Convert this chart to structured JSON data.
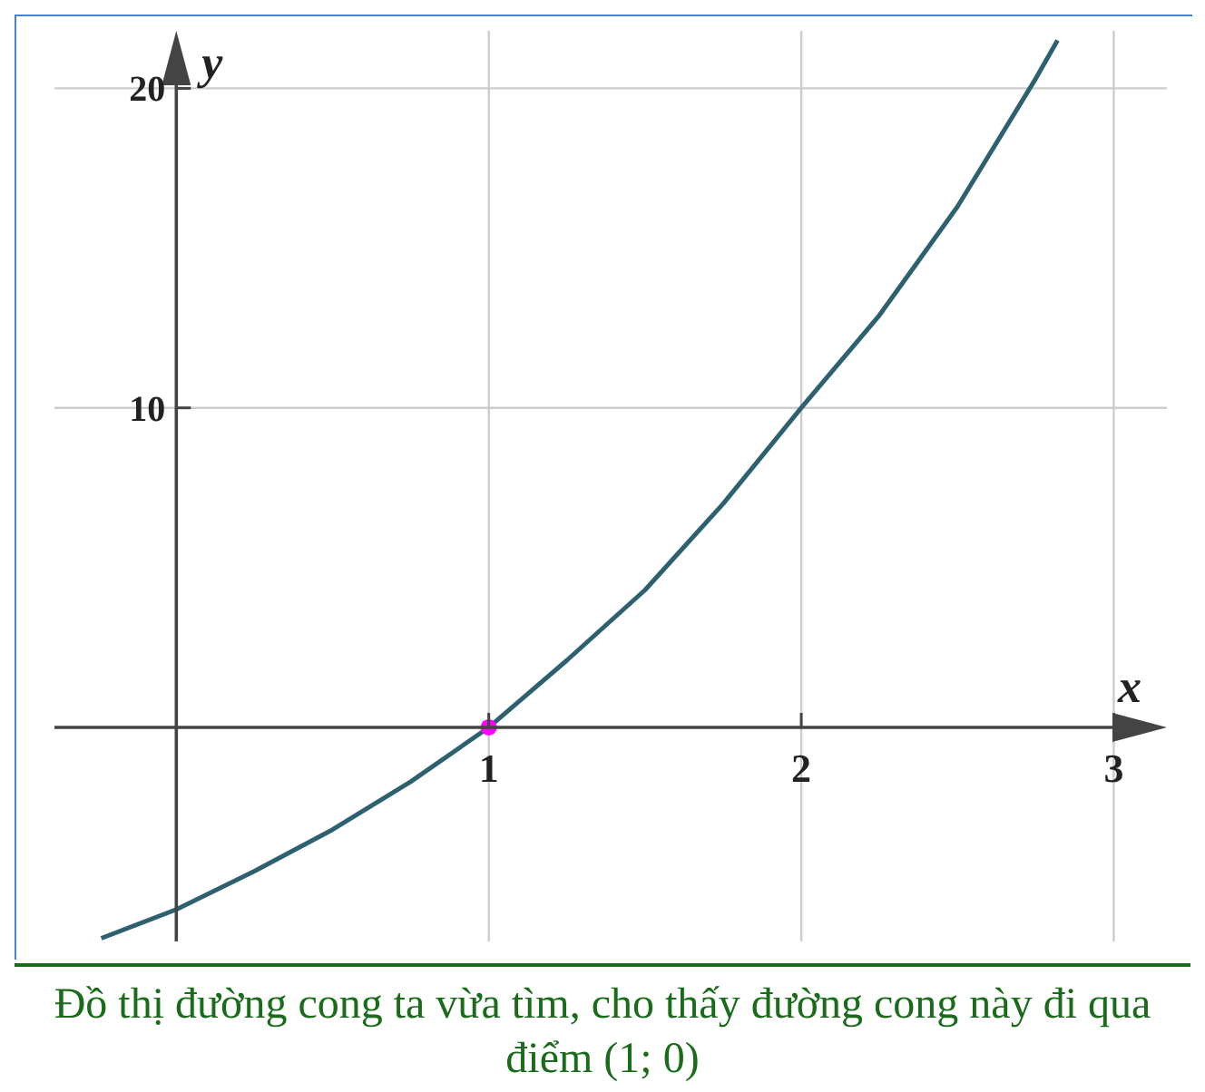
{
  "chart_data": {
    "type": "line",
    "xlabel": "x",
    "ylabel": "y",
    "xlim": [
      -0.39,
      3.17
    ],
    "ylim": [
      -6.7,
      21.8
    ],
    "xticks": [
      1,
      2,
      3
    ],
    "yticks": [
      10,
      20
    ],
    "grid": true,
    "annotations": [
      "Đồ thị đường cong ta vừa tìm, cho thấy đường cong này đi qua điểm (1; 0)"
    ],
    "series": [
      {
        "type": "line",
        "color": "#2e6170",
        "marker": "none",
        "x": [
          -0.24,
          0,
          0.25,
          0.5,
          0.75,
          1,
          1.25,
          1.5,
          1.75,
          2,
          2.25,
          2.5,
          2.75,
          2.82
        ],
        "values": [
          -6.6,
          -5.7,
          -4.5,
          -3.2,
          -1.7,
          0,
          2.1,
          4.3,
          7,
          10,
          12.9,
          16.3,
          20.3,
          21.5
        ]
      },
      {
        "type": "scatter",
        "color": "#ff00ff",
        "marker": "circle",
        "x": [
          1
        ],
        "values": [
          0
        ]
      }
    ]
  }
}
